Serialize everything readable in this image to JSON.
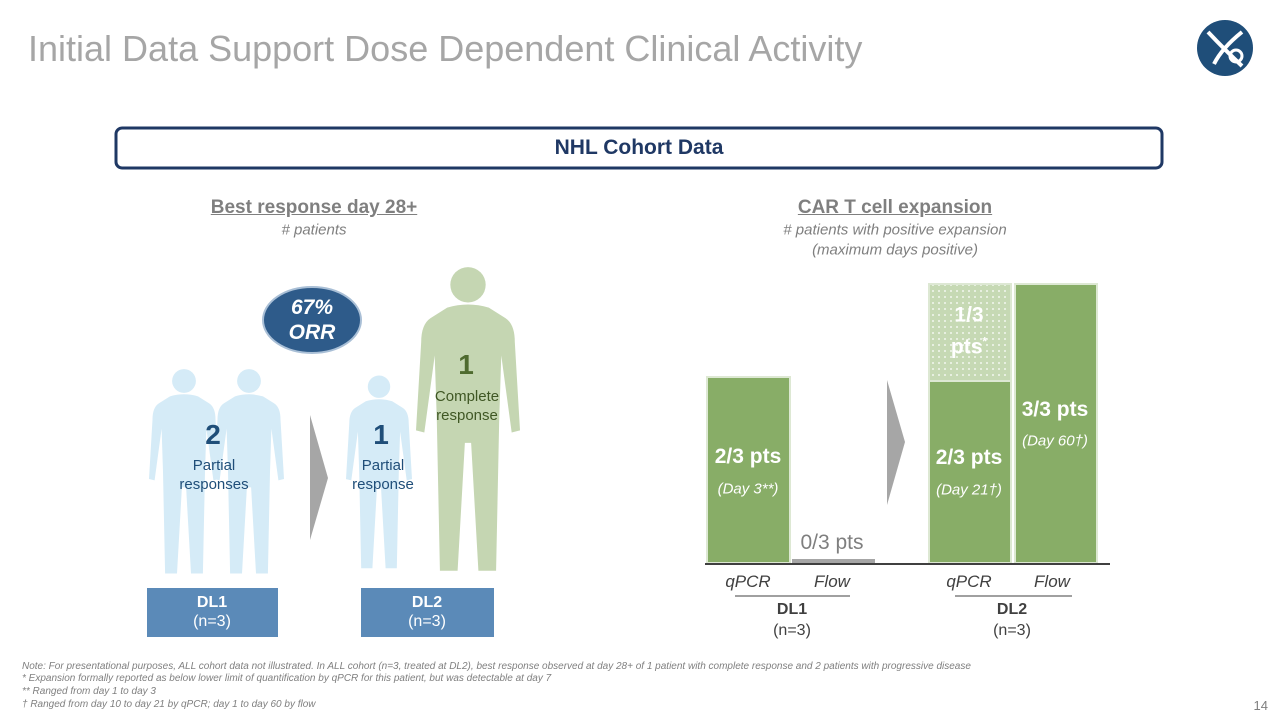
{
  "header": {
    "title": "Initial Data Support Dose Dependent Clinical Activity"
  },
  "banner": "NHL Cohort Data",
  "left": {
    "title": "Best response day 28+",
    "subtitle": "# patients",
    "badge": [
      "67%",
      "ORR"
    ],
    "groups": [
      {
        "count": "2",
        "label": [
          "Partial",
          "responses"
        ]
      },
      {
        "count": "1",
        "label": [
          "Partial",
          "response"
        ]
      },
      {
        "count": "1",
        "label": [
          "Complete",
          "response"
        ]
      }
    ],
    "doses": [
      {
        "name": "DL1",
        "n": "(n=3)"
      },
      {
        "name": "DL2",
        "n": "(n=3)"
      }
    ]
  },
  "right": {
    "title": "CAR T cell expansion",
    "subtitle": [
      "# patients with positive expansion",
      "(maximum days positive)"
    ],
    "bars": [
      {
        "label": "2/3 pts",
        "note": "(Day 3**)"
      },
      {
        "label": "0/3 pts"
      },
      {
        "label": [
          "1/3",
          "pts"
        ],
        "mark": "*"
      },
      {
        "label": "2/3 pts",
        "note": "(Day 21†)"
      },
      {
        "label": "3/3 pts",
        "note": "(Day 60†)"
      }
    ],
    "methods": [
      "qPCR",
      "Flow"
    ],
    "doses": [
      {
        "name": "DL1",
        "n": "(n=3)"
      },
      {
        "name": "DL2",
        "n": "(n=3)"
      }
    ]
  },
  "footnotes": [
    "Note: For presentational purposes, ALL cohort data not illustrated. In ALL cohort (n=3, treated at DL2), best response observed at day 28+ of 1 patient with complete response and 2 patients with progressive disease",
    "* Expansion formally reported as below lower limit of quantification by qPCR for this patient, but was detectable at day 7",
    "** Ranged from day 1 to day 3",
    "† Ranged from day 10 to day 21 by qPCR; day 1 to day 60 by flow"
  ],
  "page_number": "14"
}
